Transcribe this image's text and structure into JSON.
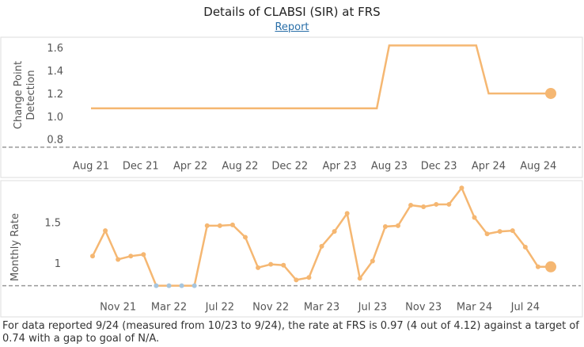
{
  "header": {
    "title": "Details of CLABSI (SIR) at FRS",
    "link": "Report"
  },
  "chart_data": [
    {
      "type": "line",
      "y_label": "Change Point Detection",
      "color": "#f5b772",
      "target": 0.74,
      "categories": [
        "Aug 21",
        null,
        null,
        null,
        "Dec 21",
        null,
        null,
        null,
        "Apr 22",
        null,
        null,
        null,
        "Aug 22",
        null,
        null,
        null,
        "Dec 22",
        null,
        null,
        null,
        "Apr 23",
        null,
        null,
        null,
        "Aug 23",
        null,
        null,
        null,
        "Dec 23",
        null,
        null,
        null,
        "Apr 24",
        null,
        null,
        null,
        "Aug 24",
        null
      ],
      "values": [
        1.08,
        1.08,
        1.08,
        1.08,
        1.08,
        1.08,
        1.08,
        1.08,
        1.08,
        1.08,
        1.08,
        1.08,
        1.08,
        1.08,
        1.08,
        1.08,
        1.08,
        1.08,
        1.08,
        1.08,
        1.08,
        1.08,
        1.08,
        1.08,
        1.63,
        1.63,
        1.63,
        1.63,
        1.63,
        1.63,
        1.63,
        1.63,
        1.21,
        1.21,
        1.21,
        1.21,
        1.21,
        1.21
      ],
      "ylim": [
        0.69,
        1.75
      ],
      "yticks": [
        0.8,
        {
          "value": 1,
          "label": "1.0"
        },
        1.2,
        1.4,
        1.6
      ]
    },
    {
      "type": "line",
      "y_label": "Monthly Rate",
      "color": "#f5b772",
      "below_color": "#a6c5de",
      "target": 0.74,
      "categories": [
        null,
        null,
        "Nov 21",
        null,
        null,
        null,
        "Mar 22",
        null,
        null,
        null,
        "Jul 22",
        null,
        null,
        null,
        "Nov 22",
        null,
        null,
        null,
        "Mar 23",
        null,
        null,
        null,
        "Jul 23",
        null,
        null,
        null,
        "Nov 23",
        null,
        null,
        null,
        "Mar 24",
        null,
        null,
        null,
        "Jul 24",
        null,
        null
      ],
      "values": [
        1.1,
        1.41,
        1.06,
        1.1,
        1.12,
        0.74,
        0.74,
        0.74,
        0.74,
        1.47,
        1.47,
        1.48,
        1.33,
        0.96,
        1.0,
        0.99,
        0.81,
        0.84,
        1.22,
        1.4,
        1.62,
        0.83,
        1.04,
        1.46,
        1.47,
        1.72,
        1.7,
        1.73,
        1.73,
        1.93,
        1.57,
        1.37,
        1.4,
        1.41,
        1.21,
        0.97,
        0.97
      ],
      "ylim": [
        0.38,
        1.98
      ],
      "yticks": [
        1,
        1.5
      ]
    }
  ],
  "footer": "For data reported 9/24 (measured from 10/23 to 9/24), the rate at FRS is 0.97 (4 out of 4.12) against a target of 0.74 with a gap to goal of  N/A."
}
